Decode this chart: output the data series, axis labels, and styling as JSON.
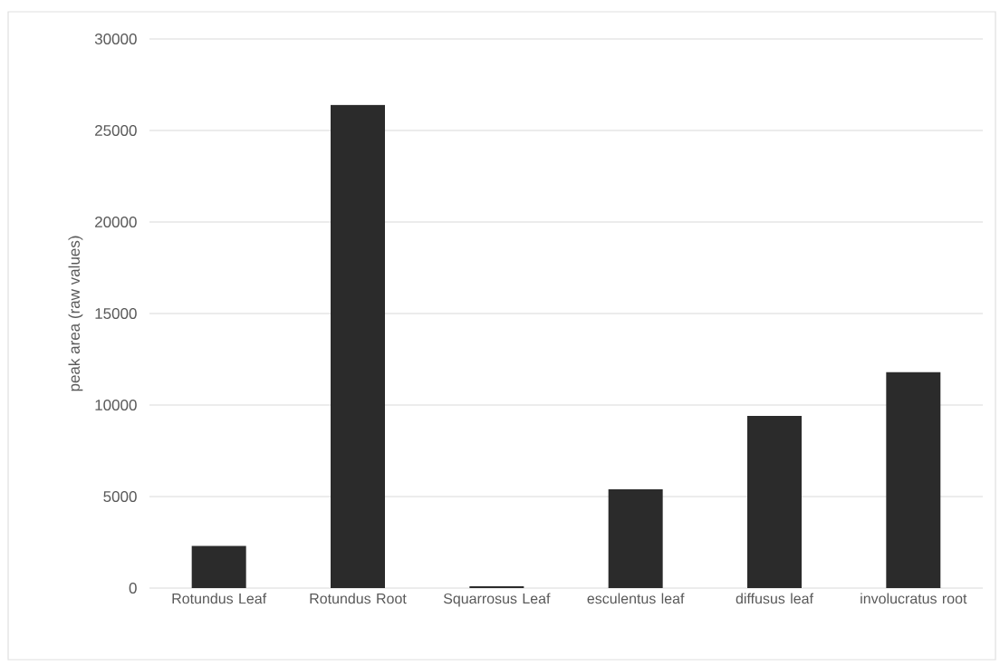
{
  "chart_data": {
    "type": "bar",
    "ylabel": "peak area (raw values)",
    "categories": [
      "Rotundus Leaf",
      "Rotundus Root",
      "Squarrosus Leaf",
      "esculentus leaf",
      "diffusus leaf",
      "involucratus root"
    ],
    "values": [
      2300,
      26400,
      100,
      5400,
      9400,
      11800
    ],
    "color": "#2b2b2b",
    "ylim": [
      0,
      30000
    ],
    "yticks": [
      0,
      5000,
      10000,
      15000,
      20000,
      25000,
      30000
    ],
    "grid": "y"
  }
}
